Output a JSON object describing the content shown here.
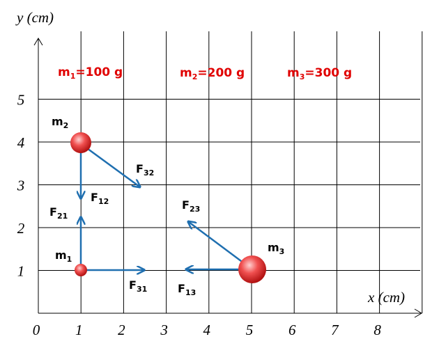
{
  "axes": {
    "x_label": "x (cm)",
    "y_label": "y (cm)",
    "x_ticks": [
      0,
      1,
      2,
      3,
      4,
      5,
      6,
      7,
      8
    ],
    "y_ticks": [
      1,
      2,
      3,
      4,
      5
    ]
  },
  "masses": [
    {
      "symbol": "m",
      "index": "1",
      "value": "=100 g"
    },
    {
      "symbol": "m",
      "index": "2",
      "value": "=200 g"
    },
    {
      "symbol": "m",
      "index": "3",
      "value": "=300 g"
    }
  ],
  "point_labels": [
    {
      "symbol": "m",
      "index": "2"
    },
    {
      "symbol": "m",
      "index": "1"
    },
    {
      "symbol": "m",
      "index": "3"
    }
  ],
  "forces": [
    {
      "symbol": "F",
      "index": "32"
    },
    {
      "symbol": "F",
      "index": "12"
    },
    {
      "symbol": "F",
      "index": "21"
    },
    {
      "symbol": "F",
      "index": "31"
    },
    {
      "symbol": "F",
      "index": "23"
    },
    {
      "symbol": "F",
      "index": "13"
    }
  ]
}
